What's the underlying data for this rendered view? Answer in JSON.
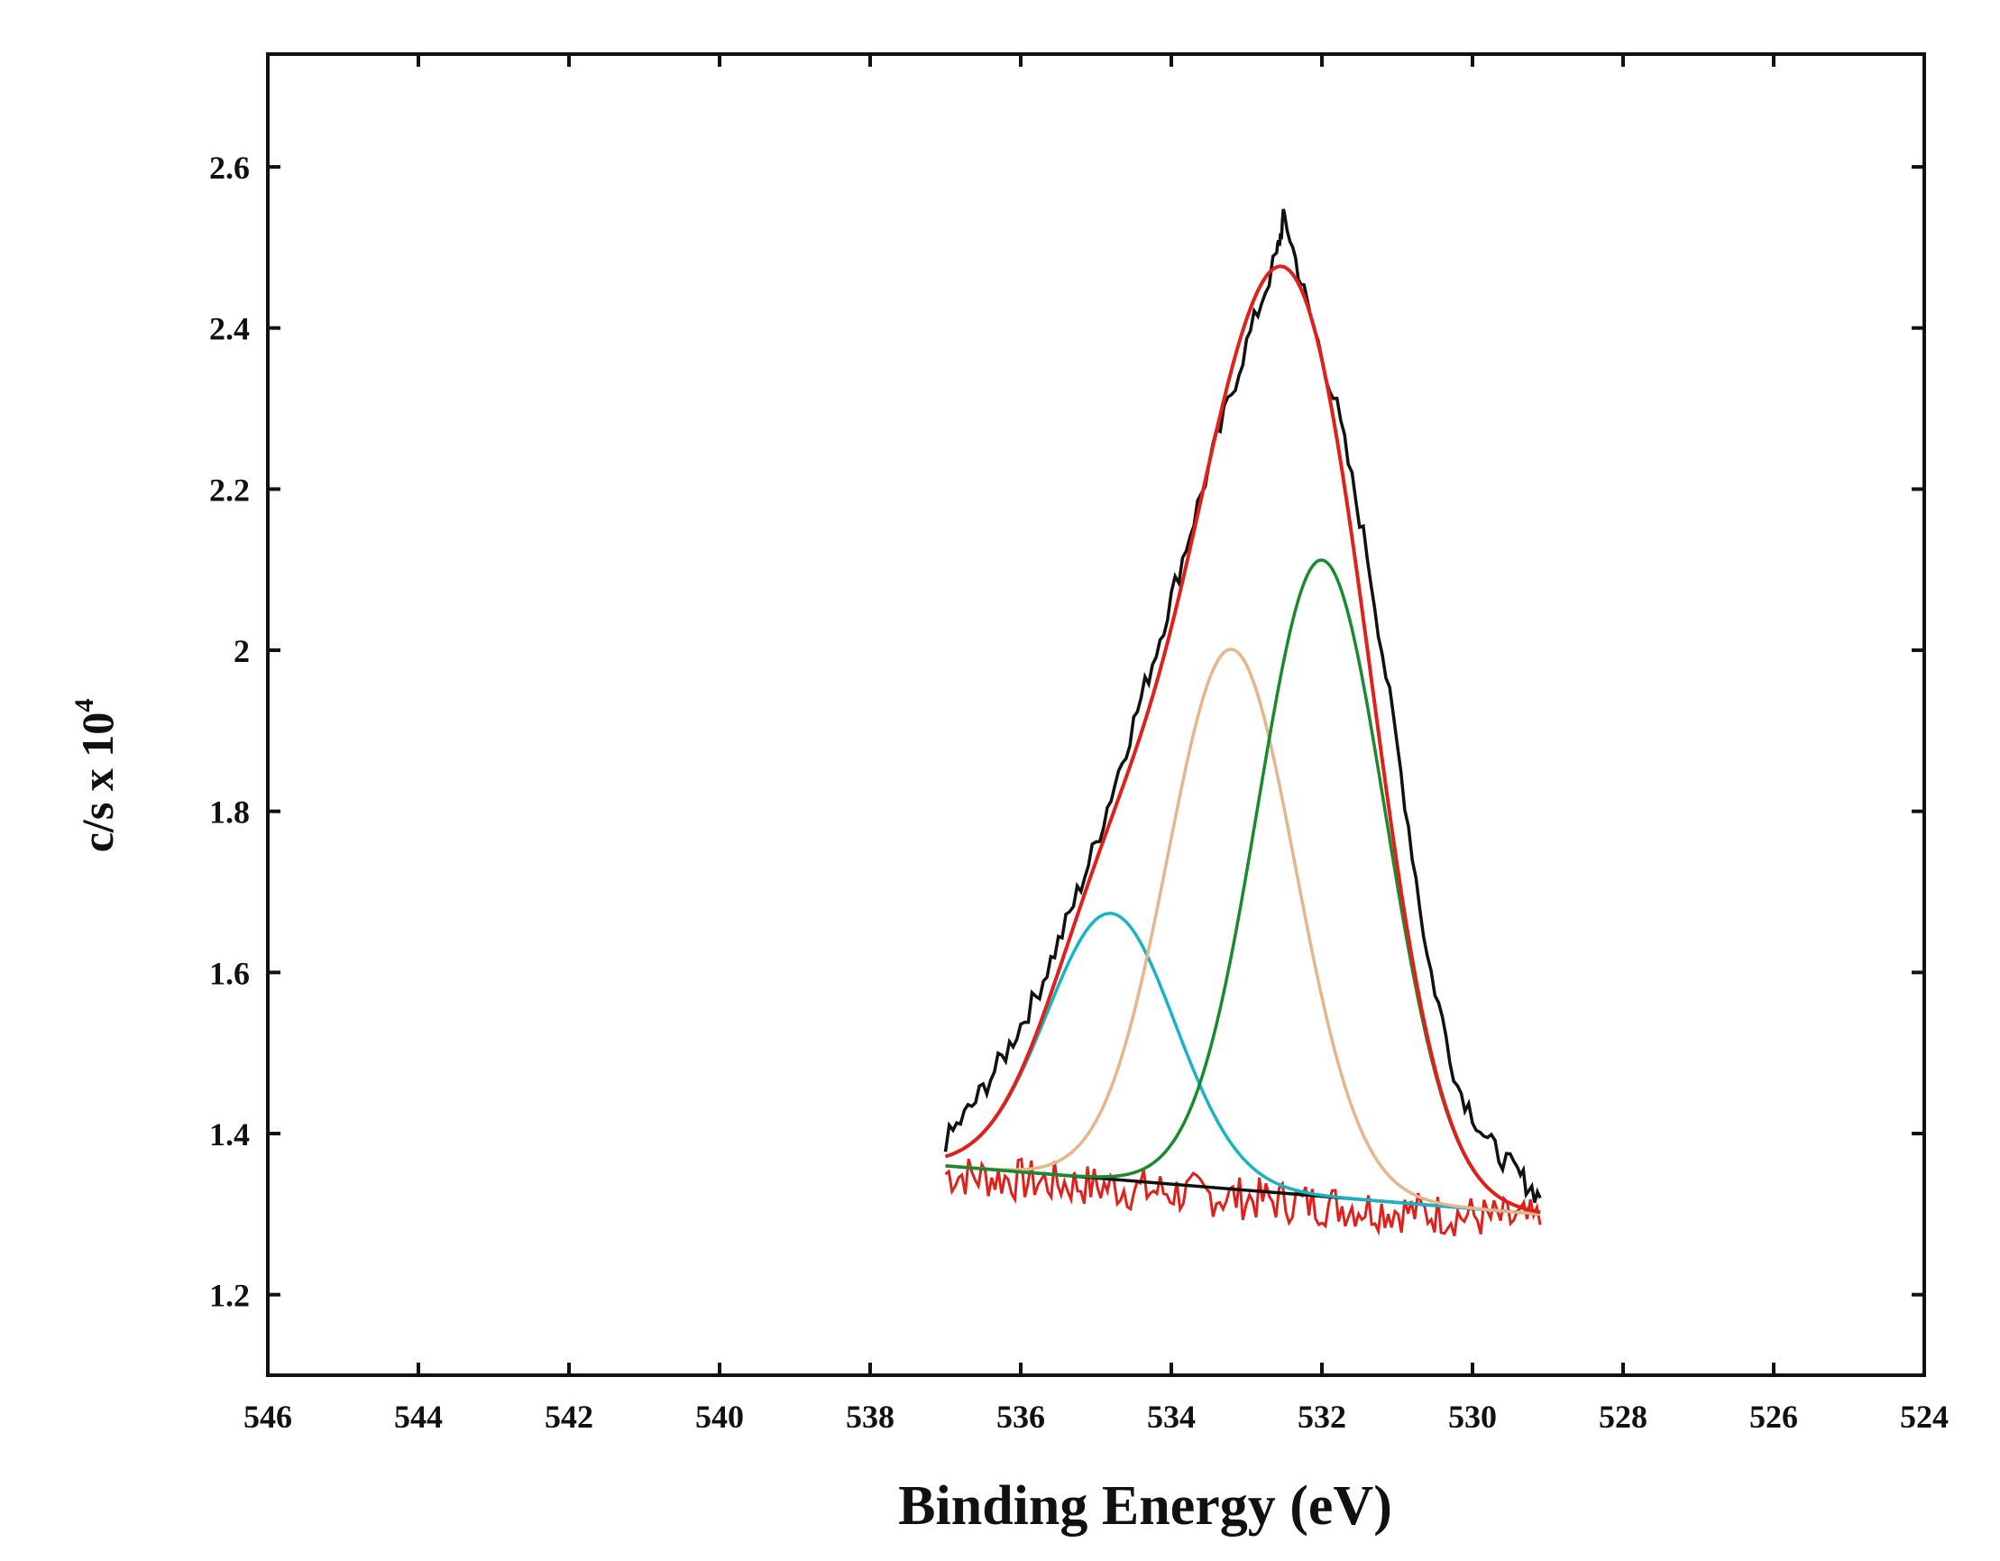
{
  "chart_data": {
    "type": "line",
    "title": "",
    "xlabel": "Binding Energy (eV)",
    "ylabel_main": "c/s x 10",
    "ylabel_exponent": "4",
    "xlim": [
      546,
      524
    ],
    "ylim": [
      1.1,
      2.74
    ],
    "x_reversed": true,
    "grid": false,
    "legend": "none",
    "x_ticks": [
      546,
      544,
      542,
      540,
      538,
      536,
      534,
      532,
      530,
      528,
      526,
      524
    ],
    "x_tick_labels": [
      "546",
      "544",
      "542",
      "540",
      "538",
      "536",
      "534",
      "532",
      "530",
      "528",
      "526",
      "524"
    ],
    "y_ticks": [
      1.2,
      1.4,
      1.6,
      1.8,
      2.0,
      2.2,
      2.4,
      2.6
    ],
    "y_tick_labels": [
      "1.2",
      "1.4",
      "1.6",
      "1.8",
      "2",
      "2.2",
      "2.4",
      "2.6"
    ],
    "series": [
      {
        "role": "raw-data",
        "color": "#111111",
        "x": [
          537.0,
          536.6,
          536.2,
          535.8,
          535.4,
          535.0,
          534.6,
          534.2,
          533.8,
          533.4,
          533.0,
          532.6,
          532.5,
          532.2,
          531.8,
          531.4,
          531.0,
          530.6,
          530.2,
          529.8,
          529.4,
          529.1
        ],
        "y": [
          1.39,
          1.44,
          1.5,
          1.57,
          1.66,
          1.76,
          1.88,
          2.0,
          2.13,
          2.26,
          2.38,
          2.49,
          2.54,
          2.43,
          2.3,
          2.12,
          1.88,
          1.62,
          1.46,
          1.39,
          1.35,
          1.32
        ]
      },
      {
        "role": "fit-envelope",
        "color": "#e0201a",
        "peaks": [
          {
            "center": 534.8,
            "height": 0.33,
            "fwhm": 2.0
          },
          {
            "center": 533.2,
            "height": 0.67,
            "fwhm": 2.0
          },
          {
            "center": 532.0,
            "height": 0.79,
            "fwhm": 2.0
          }
        ]
      },
      {
        "role": "component-peak",
        "color": "#17b5c4",
        "center": 534.8,
        "height": 0.33,
        "fwhm": 2.0
      },
      {
        "role": "component-peak",
        "color": "#e5b58c",
        "center": 533.2,
        "height": 0.67,
        "fwhm": 2.0
      },
      {
        "role": "component-peak",
        "color": "#1a8a2e",
        "center": 532.0,
        "height": 0.79,
        "fwhm": 2.0
      },
      {
        "role": "baseline",
        "color": "#111111",
        "x": [
          537.0,
          529.1
        ],
        "y": [
          1.36,
          1.3
        ]
      },
      {
        "role": "residual",
        "color": "#e0201a",
        "x": [
          537.0,
          529.1
        ],
        "y_base": [
          1.35,
          1.29
        ]
      }
    ]
  }
}
